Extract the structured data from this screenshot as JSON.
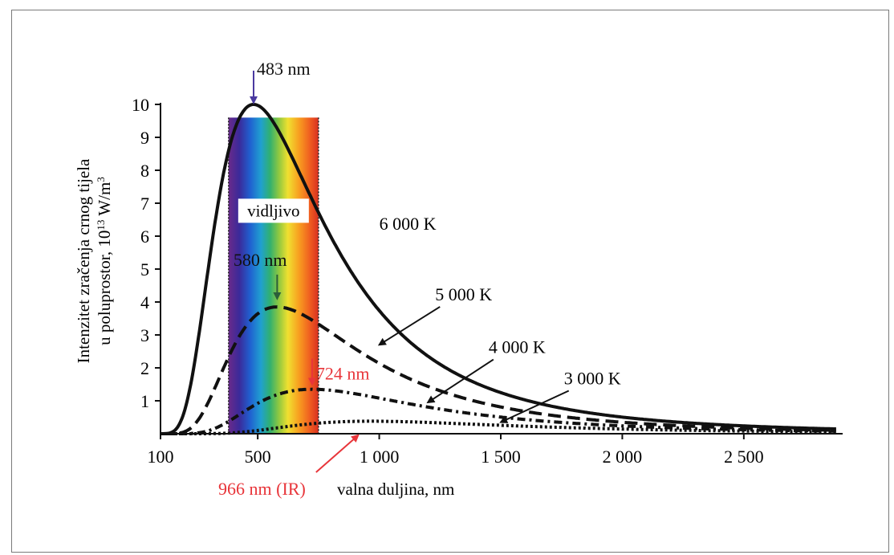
{
  "chart_data": {
    "type": "line",
    "xlabel": "valna duljina, nm",
    "ylabel_line1": "Intenzitet zračenja crnog tijela",
    "ylabel_line2_prefix": "u poluprostor, 10",
    "ylabel_line2_exp": "13",
    "ylabel_line2_unit": " W/m",
    "ylabel_line2_unit_exp": "3",
    "xlim": [
      100,
      2900
    ],
    "ylim": [
      0,
      10
    ],
    "x_ticks": [
      100,
      500,
      1000,
      1500,
      2000,
      2500
    ],
    "x_tick_labels": [
      "100",
      "500",
      "1 000",
      "1 500",
      "2 000",
      "2 500"
    ],
    "y_ticks": [
      1,
      2,
      3,
      4,
      5,
      6,
      7,
      8,
      9,
      10
    ],
    "y_tick_labels": [
      "1",
      "2",
      "3",
      "4",
      "5",
      "6",
      "7",
      "8",
      "9",
      "10"
    ],
    "visible_band": {
      "label": "vidljivo",
      "from": 380,
      "to": 750
    },
    "series": [
      {
        "name": "6000 K",
        "label": "6 000 K",
        "temperature": 6000,
        "style": "solid",
        "peak_x": 483,
        "peak_y": 10.0,
        "label_pos": [
          1000,
          6.2
        ]
      },
      {
        "name": "5000 K",
        "label": "5 000 K",
        "temperature": 5000,
        "style": "dashed",
        "peak_x": 580,
        "peak_y": 3.85,
        "label_pos": [
          1230,
          4.05
        ],
        "pointer_to": [
          1000,
          2.7
        ]
      },
      {
        "name": "4000 K",
        "label": "4 000 K",
        "temperature": 4000,
        "style": "dash-dot",
        "peak_x": 724,
        "peak_y": 1.35,
        "label_pos": [
          1450,
          2.45
        ],
        "pointer_to": [
          1200,
          0.95
        ]
      },
      {
        "name": "3000 K",
        "label": "3 000 K",
        "temperature": 3000,
        "style": "dotted",
        "peak_x": 966,
        "peak_y": 0.38,
        "label_pos": [
          1760,
          1.5
        ],
        "pointer_to": [
          1500,
          0.35
        ]
      }
    ],
    "annotations": [
      {
        "text": "483 nm",
        "x": 483,
        "color": "#4a3aa0",
        "arrow_to_y": 10.05,
        "text_pos": [
          483,
          10.9
        ]
      },
      {
        "text": "580 nm",
        "x": 580,
        "color": "#2c5e3a",
        "arrow_to_y": 4.1,
        "text_pos": [
          400,
          5.1
        ]
      },
      {
        "text": "724 nm",
        "x": 724,
        "color": "#e8353a",
        "arrow_to_y": 1.5,
        "text_pos": [
          740,
          1.65
        ]
      },
      {
        "text": "966 nm (IR)",
        "x": 966,
        "color": "#e8353a",
        "arrow_to_y": 0.55,
        "text_pos": [
          395,
          -1.65
        ]
      }
    ]
  }
}
